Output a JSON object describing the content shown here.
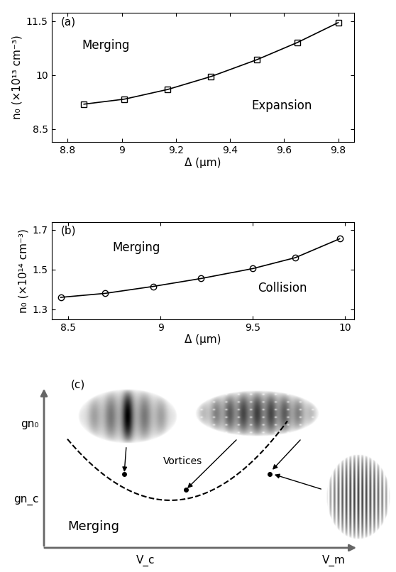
{
  "chart_data": [
    {
      "type": "line",
      "panel_label": "(a)",
      "x_label": "Δ (μm)",
      "y_label": "n₀ (×10¹³ cm⁻³)",
      "x": [
        8.86,
        9.01,
        9.17,
        9.33,
        9.5,
        9.65,
        9.8
      ],
      "values": [
        9.19,
        9.33,
        9.6,
        9.96,
        10.43,
        10.91,
        11.46
      ],
      "color": "#000000",
      "marker": "square",
      "line_style": "solid",
      "xlim": [
        8.74,
        9.86
      ],
      "xticks": [
        8.8,
        9,
        9.2,
        9.4,
        9.6,
        9.8
      ],
      "ylim": [
        8.14,
        11.74
      ],
      "yticks": [
        8.5,
        10,
        11.5
      ],
      "annotations": [
        "Merging",
        "Expansion"
      ]
    },
    {
      "type": "line",
      "panel_label": "(b)",
      "x_label": "Δ (μm)",
      "y_label": "n₀ (×10¹⁴ cm⁻³)",
      "x": [
        8.46,
        8.7,
        8.96,
        9.22,
        9.5,
        9.73,
        9.97
      ],
      "values": [
        1.36,
        1.38,
        1.415,
        1.455,
        1.505,
        1.56,
        1.655
      ],
      "color": "#000000",
      "marker": "circle",
      "line_style": "solid",
      "xlim": [
        8.41,
        10.05
      ],
      "xticks": [
        8.5,
        9,
        9.5,
        10
      ],
      "ylim": [
        1.25,
        1.74
      ],
      "yticks": [
        1.3,
        1.5,
        1.7
      ],
      "annotations": [
        "Merging",
        "Collision"
      ]
    }
  ],
  "diagram": {
    "panel_label": "(c)",
    "y_axis_label": "gn₀",
    "y_mark": "gn_c",
    "x_axis_label": "V_m",
    "x_mark": "V_c",
    "region": "Merging",
    "annotation": "Vortices"
  }
}
